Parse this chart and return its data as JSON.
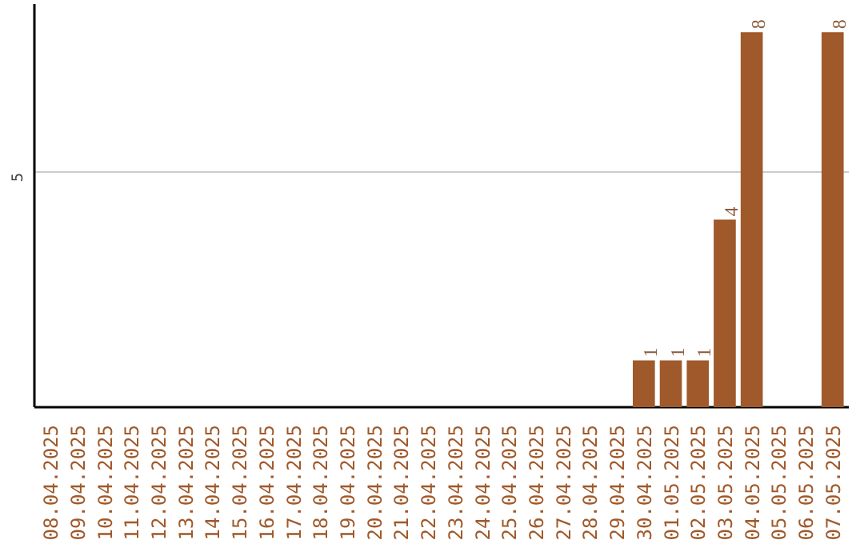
{
  "chart_data": {
    "type": "bar",
    "categories": [
      "08.04.2025",
      "09.04.2025",
      "10.04.2025",
      "11.04.2025",
      "12.04.2025",
      "13.04.2025",
      "14.04.2025",
      "15.04.2025",
      "16.04.2025",
      "17.04.2025",
      "18.04.2025",
      "19.04.2025",
      "20.04.2025",
      "21.04.2025",
      "22.04.2025",
      "23.04.2025",
      "24.04.2025",
      "25.04.2025",
      "26.04.2025",
      "27.04.2025",
      "28.04.2025",
      "29.04.2025",
      "30.04.2025",
      "01.05.2025",
      "02.05.2025",
      "03.05.2025",
      "04.05.2025",
      "05.05.2025",
      "06.05.2025",
      "07.05.2025"
    ],
    "values": [
      null,
      null,
      null,
      null,
      null,
      null,
      null,
      null,
      null,
      null,
      null,
      null,
      null,
      null,
      null,
      null,
      null,
      null,
      null,
      null,
      null,
      null,
      1,
      1,
      1,
      4,
      8,
      null,
      null,
      8
    ],
    "data_labels": true,
    "color": "#a0592a",
    "ylim": [
      0,
      8.6
    ],
    "yticks": [
      5
    ],
    "grid": "y"
  }
}
